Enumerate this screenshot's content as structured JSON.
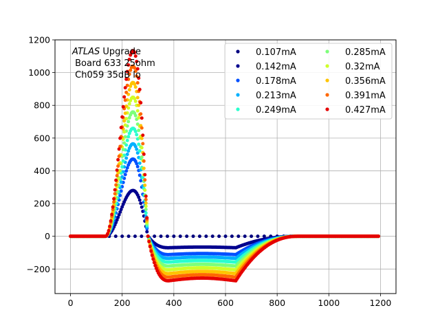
{
  "chart_data": {
    "type": "scatter",
    "title": "",
    "xlabel": "",
    "ylabel": "",
    "xlim": [
      -60,
      1260
    ],
    "ylim": [
      -350,
      1200
    ],
    "xticks": [
      0,
      200,
      400,
      600,
      800,
      1000,
      1200
    ],
    "yticks": [
      -200,
      0,
      200,
      400,
      600,
      800,
      1000,
      1200
    ],
    "grid": true,
    "legend_position": "top-right",
    "legend_columns": 2,
    "annotation": {
      "italic": "ATLAS",
      "rest": " Upgrade",
      "line2": " Board 633 25ohm",
      "line3": " Ch059 35dB lo"
    },
    "series": [
      {
        "name": "0.107mA",
        "color": "#00007f",
        "current_mA": 0.107,
        "peak": 0,
        "undershoot": 0,
        "marker_step": 25
      },
      {
        "name": "0.142mA",
        "color": "#00008e",
        "current_mA": 0.142,
        "peak": 280,
        "undershoot": -70,
        "marker_step": 4
      },
      {
        "name": "0.178mA",
        "color": "#0050ff",
        "current_mA": 0.178,
        "peak": 472,
        "undershoot": -112,
        "marker_step": 4
      },
      {
        "name": "0.213mA",
        "color": "#00b0ff",
        "current_mA": 0.213,
        "peak": 565,
        "undershoot": -135,
        "marker_step": 4
      },
      {
        "name": "0.249mA",
        "color": "#29ffce",
        "current_mA": 0.249,
        "peak": 660,
        "undershoot": -158,
        "marker_step": 4
      },
      {
        "name": "0.285mA",
        "color": "#7dff7a",
        "current_mA": 0.285,
        "peak": 760,
        "undershoot": -182,
        "marker_step": 4
      },
      {
        "name": "0.32mA",
        "color": "#ceff29",
        "current_mA": 0.32,
        "peak": 850,
        "undershoot": -205,
        "marker_step": 4
      },
      {
        "name": "0.356mA",
        "color": "#ffc400",
        "current_mA": 0.356,
        "peak": 940,
        "undershoot": -228,
        "marker_step": 4
      },
      {
        "name": "0.391mA",
        "color": "#ff6800",
        "current_mA": 0.391,
        "peak": 1040,
        "undershoot": -250,
        "marker_step": 4
      },
      {
        "name": "0.427mA",
        "color": "#e50000",
        "current_mA": 0.427,
        "peak": 1135,
        "undershoot": -272,
        "marker_step": 4
      }
    ]
  }
}
